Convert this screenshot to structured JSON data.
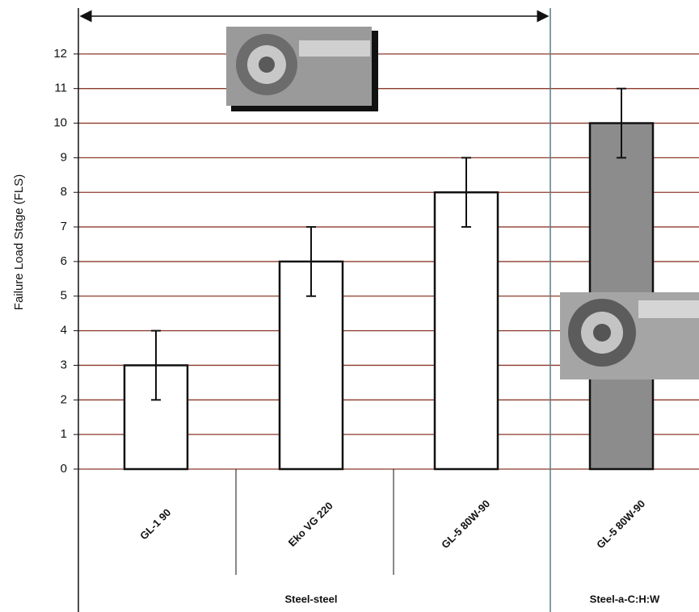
{
  "chart_data": {
    "type": "bar",
    "y_label": "Failure Load Stage (FLS)",
    "categories": [
      "GL-1  90",
      "Eko  VG 220",
      "GL-5  80W-90",
      "GL-5  80W-90"
    ],
    "values": [
      3,
      6,
      8,
      10
    ],
    "errors": [
      1,
      1,
      1,
      1
    ],
    "colors": [
      "#ffffff",
      "#ffffff",
      "#ffffff",
      "#8c8c8c"
    ],
    "group_labels": [
      "Steel-steel",
      "Steel-a-C:H:W"
    ],
    "ylim": [
      0,
      13
    ],
    "yticks": [
      0,
      1,
      2,
      3,
      4,
      5,
      6,
      7,
      8,
      9,
      10,
      11,
      12
    ],
    "grid": true,
    "grid_color": "#8b3a2a"
  }
}
